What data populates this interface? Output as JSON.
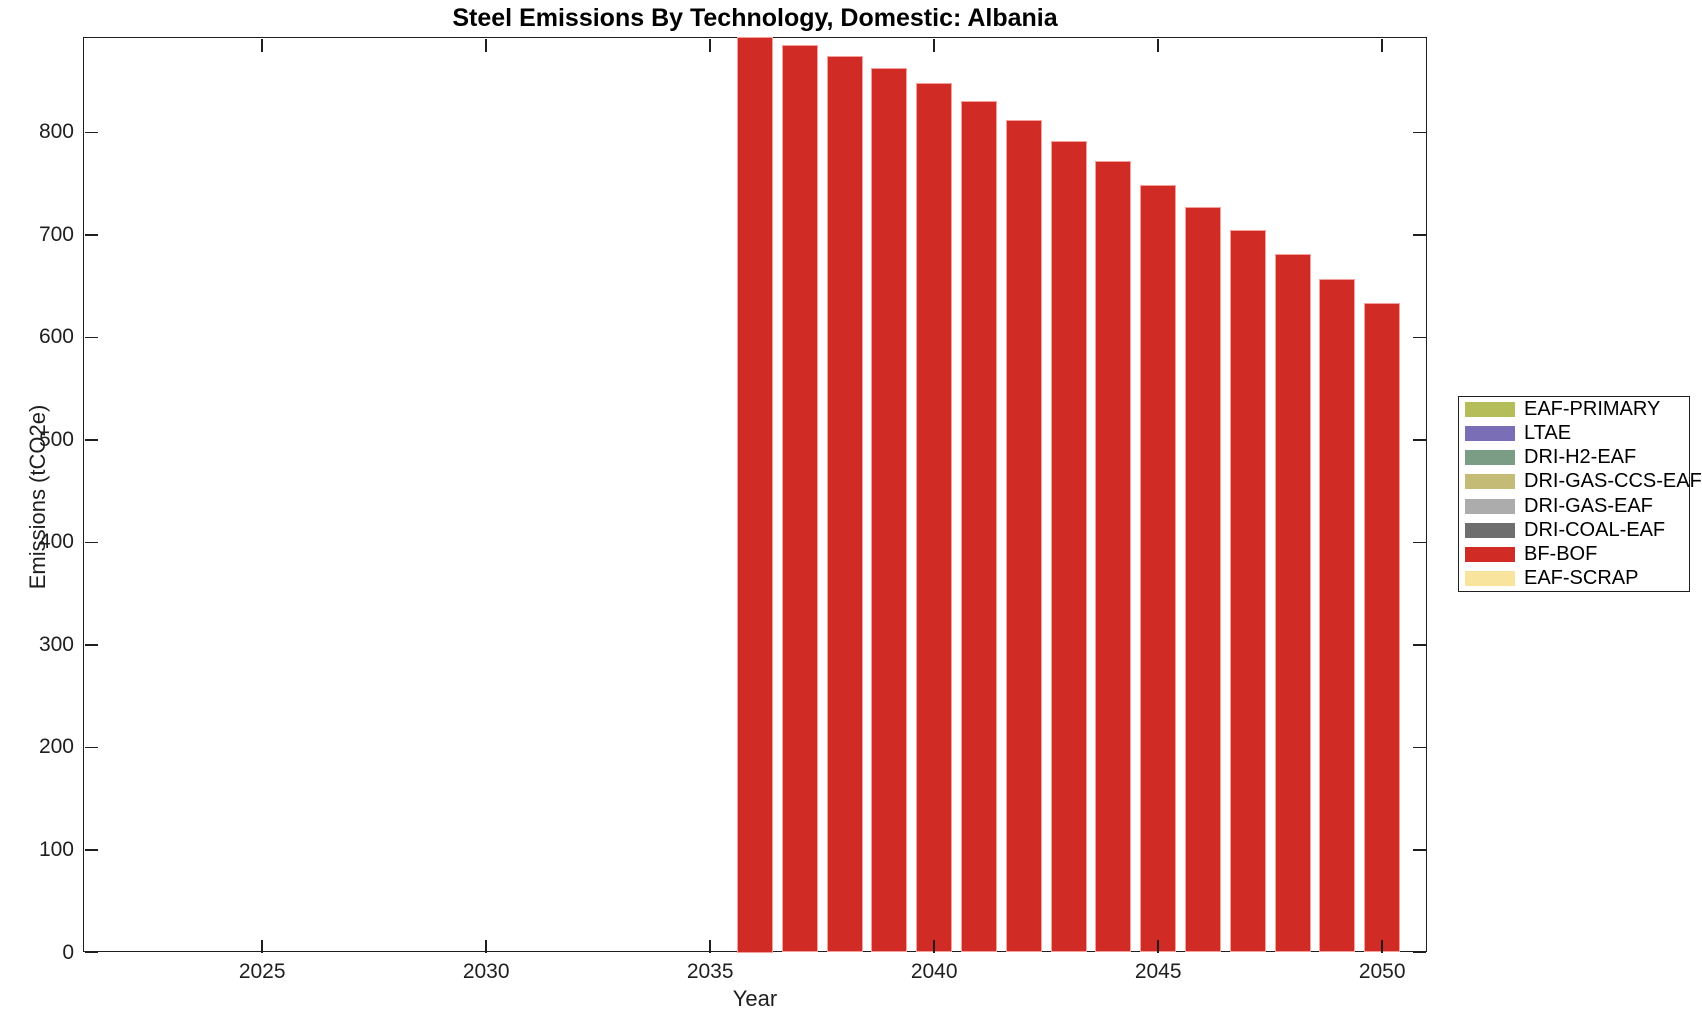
{
  "chart_data": {
    "type": "bar",
    "title": "Steel Emissions By Technology, Domestic: Albania",
    "xlabel": "Year",
    "ylabel": "Emissions (tCO2e)",
    "xlim": [
      2021,
      2051
    ],
    "ylim": [
      0,
      893
    ],
    "xticks": [
      2025,
      2030,
      2035,
      2040,
      2045,
      2050
    ],
    "yticks": [
      0,
      100,
      200,
      300,
      400,
      500,
      600,
      700,
      800
    ],
    "grid": false,
    "bar_width_years": 0.8,
    "legend_position": "right-outside",
    "legend": [
      {
        "label": "EAF-PRIMARY",
        "color": "#B5BD5A"
      },
      {
        "label": "LTAE",
        "color": "#7A6FB6"
      },
      {
        "label": "DRI-H2-EAF",
        "color": "#7B9D85"
      },
      {
        "label": "DRI-GAS-CCS-EAF",
        "color": "#C4BB77"
      },
      {
        "label": "DRI-GAS-EAF",
        "color": "#ACACAC"
      },
      {
        "label": "DRI-COAL-EAF",
        "color": "#6E6E6E"
      },
      {
        "label": "BF-BOF",
        "color": "#D02B25"
      },
      {
        "label": "EAF-SCRAP",
        "color": "#F9E49E"
      }
    ],
    "series": [
      {
        "name": "BF-BOF",
        "color": "#D02B25",
        "x": [
          2036,
          2037,
          2038,
          2039,
          2040,
          2041,
          2042,
          2043,
          2044,
          2045,
          2046,
          2047,
          2048,
          2049,
          2050
        ],
        "values": [
          893,
          885,
          874,
          863,
          848,
          831,
          812,
          792,
          772,
          749,
          727,
          705,
          681,
          657,
          634
        ]
      }
    ]
  }
}
